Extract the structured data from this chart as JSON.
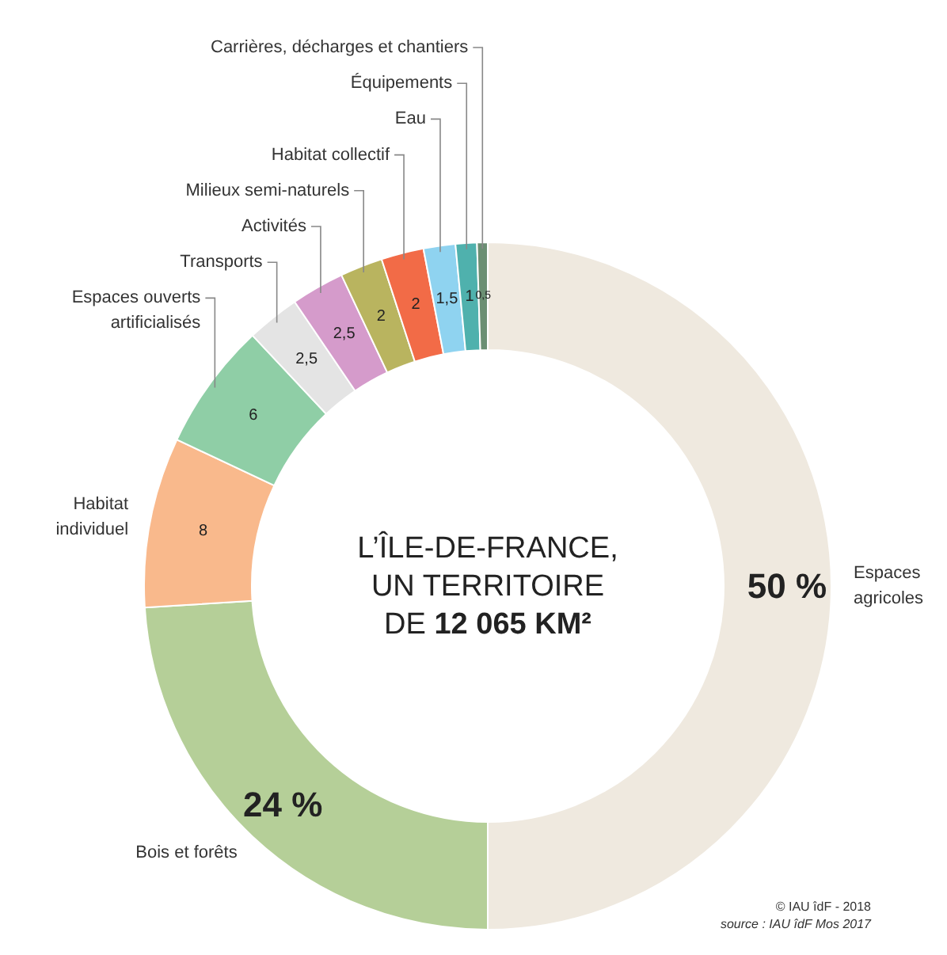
{
  "chart_data": {
    "type": "donut",
    "title": "L’ÎLE-DE-FRANCE, UN TERRITOIRE DE 12 065 KM²",
    "categories": [
      "Espaces agricoles",
      "Bois et forêts",
      "Habitat individuel",
      "Espaces ouverts artificialisés",
      "Transports",
      "Activités",
      "Milieux semi-naturels",
      "Habitat collectif",
      "Eau",
      "Équipements",
      "Carrières, décharges et chantiers"
    ],
    "values": [
      50,
      24,
      8,
      6,
      2.5,
      2.5,
      2,
      2,
      1.5,
      1,
      0.5
    ],
    "colors": [
      "#efe9df",
      "#b5cf98",
      "#f9b98c",
      "#8fcea6",
      "#e4e4e4",
      "#d59bcb",
      "#b9b45f",
      "#f26b47",
      "#8fd3f0",
      "#4fb1ad",
      "#6b8f73"
    ],
    "value_labels": [
      "50 %",
      "24 %",
      "8",
      "6",
      "2,5",
      "2,5",
      "2",
      "2",
      "1,5",
      "1",
      "0,5"
    ],
    "annotations": [
      "© IAU îdF - 2018",
      "source : IAU îdF Mos 2017"
    ]
  }
}
